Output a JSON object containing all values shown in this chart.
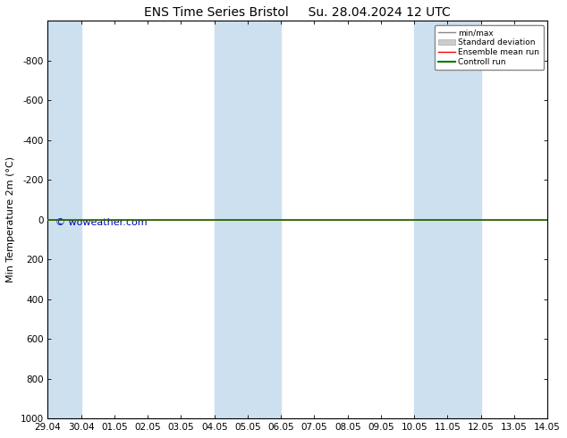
{
  "title": "ENS Time Series Bristol     Su. 28.04.2024 12 UTC",
  "ylabel": "Min Temperature 2m (°C)",
  "xlim_start": 0,
  "xlim_end": 15,
  "ylim_bottom": 1000,
  "ylim_top": -1000,
  "yticks": [
    -800,
    -600,
    -400,
    -200,
    0,
    200,
    400,
    600,
    800,
    1000
  ],
  "xtick_labels": [
    "29.04",
    "30.04",
    "01.05",
    "02.05",
    "03.05",
    "04.05",
    "05.05",
    "06.05",
    "07.05",
    "08.05",
    "09.05",
    "10.05",
    "11.05",
    "12.05",
    "13.05",
    "14.05"
  ],
  "xtick_positions": [
    0,
    1,
    2,
    3,
    4,
    5,
    6,
    7,
    8,
    9,
    10,
    11,
    12,
    13,
    14,
    15
  ],
  "shaded_bands": [
    [
      0,
      1
    ],
    [
      5,
      6
    ],
    [
      6,
      7
    ],
    [
      11,
      12
    ],
    [
      12,
      13
    ]
  ],
  "shade_color": "#cce0f0",
  "background_color": "#ffffff",
  "control_run_y": 0,
  "control_run_color": "#007700",
  "ensemble_mean_color": "#ff0000",
  "minmax_color": "#888888",
  "stddev_color": "#cccccc",
  "watermark": "© woweather.com",
  "legend_entries": [
    "min/max",
    "Standard deviation",
    "Ensemble mean run",
    "Controll run"
  ],
  "legend_colors": [
    "#888888",
    "#cccccc",
    "#ff0000",
    "#007700"
  ],
  "title_fontsize": 10,
  "tick_fontsize": 7.5,
  "ylabel_fontsize": 8
}
